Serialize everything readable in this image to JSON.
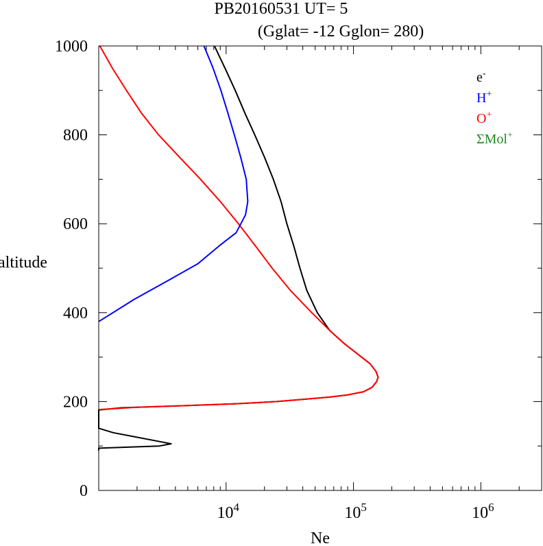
{
  "chart_data": {
    "type": "line",
    "title": "PB20160531   UT=  5",
    "subtitle": "(Gglat= -12   Gglon=  280)",
    "xlabel": "Ne",
    "ylabel": "altitude",
    "xscale": "log",
    "xlim": [
      1000,
      3000000
    ],
    "ylim": [
      0,
      1000
    ],
    "x_tick_labels": [
      {
        "base": "10",
        "exp": "4",
        "value": 10000
      },
      {
        "base": "10",
        "exp": "5",
        "value": 100000
      },
      {
        "base": "10",
        "exp": "6",
        "value": 1000000
      }
    ],
    "y_ticks": [
      0,
      200,
      400,
      600,
      800,
      1000
    ],
    "legend_position": "top-right",
    "legend": [
      {
        "base": "e",
        "sup": "-",
        "color": "#000000"
      },
      {
        "base": "H",
        "sup": "+",
        "color": "#0000ff"
      },
      {
        "base": "O",
        "sup": "+",
        "color": "#ff0000"
      },
      {
        "base": "ΣMol",
        "sup": "+",
        "color": "#228b22"
      }
    ],
    "series": [
      {
        "color": "#000000",
        "points": [
          [
            1000,
            90
          ],
          [
            1000,
            95
          ],
          [
            3000,
            100
          ],
          [
            3700,
            105
          ],
          [
            3000,
            110
          ],
          [
            1300,
            130
          ],
          [
            1000,
            140
          ],
          [
            1000,
            181
          ],
          [
            1500,
            186
          ],
          [
            4000,
            190
          ],
          [
            12000,
            195
          ],
          [
            25000,
            200
          ],
          [
            40000,
            205
          ],
          [
            65000,
            210
          ],
          [
            90000,
            215
          ],
          [
            120000,
            222
          ],
          [
            140000,
            232
          ],
          [
            152000,
            245
          ],
          [
            156000,
            255
          ],
          [
            150000,
            268
          ],
          [
            135000,
            285
          ],
          [
            110000,
            305
          ],
          [
            85000,
            330
          ],
          [
            65000,
            360
          ],
          [
            52000,
            400
          ],
          [
            43000,
            450
          ],
          [
            38000,
            500
          ],
          [
            34000,
            550
          ],
          [
            30000,
            600
          ],
          [
            27000,
            650
          ],
          [
            23500,
            700
          ],
          [
            20000,
            750
          ],
          [
            16800,
            800
          ],
          [
            14000,
            850
          ],
          [
            11800,
            900
          ],
          [
            9800,
            950
          ],
          [
            8100,
            1000
          ]
        ]
      },
      {
        "color": "#ff0000",
        "points": [
          [
            1000,
            182
          ],
          [
            2000,
            187
          ],
          [
            5000,
            191
          ],
          [
            12000,
            195
          ],
          [
            25000,
            200
          ],
          [
            40000,
            205
          ],
          [
            65000,
            210
          ],
          [
            90000,
            215
          ],
          [
            120000,
            222
          ],
          [
            140000,
            232
          ],
          [
            152000,
            245
          ],
          [
            156000,
            255
          ],
          [
            150000,
            268
          ],
          [
            135000,
            285
          ],
          [
            110000,
            305
          ],
          [
            85000,
            330
          ],
          [
            65000,
            360
          ],
          [
            47000,
            400
          ],
          [
            32000,
            450
          ],
          [
            23000,
            500
          ],
          [
            17000,
            550
          ],
          [
            12500,
            600
          ],
          [
            9000,
            650
          ],
          [
            6300,
            700
          ],
          [
            4300,
            750
          ],
          [
            2950,
            800
          ],
          [
            2150,
            850
          ],
          [
            1650,
            900
          ],
          [
            1280,
            950
          ],
          [
            1020,
            1000
          ]
        ]
      },
      {
        "color": "#0000ff",
        "points": [
          [
            1000,
            380
          ],
          [
            1900,
            430
          ],
          [
            3400,
            470
          ],
          [
            6000,
            510
          ],
          [
            8800,
            550
          ],
          [
            12000,
            580
          ],
          [
            14200,
            620
          ],
          [
            14800,
            650
          ],
          [
            14400,
            700
          ],
          [
            13000,
            750
          ],
          [
            11600,
            800
          ],
          [
            10300,
            850
          ],
          [
            9100,
            900
          ],
          [
            7900,
            950
          ],
          [
            6700,
            1000
          ]
        ]
      }
    ]
  }
}
